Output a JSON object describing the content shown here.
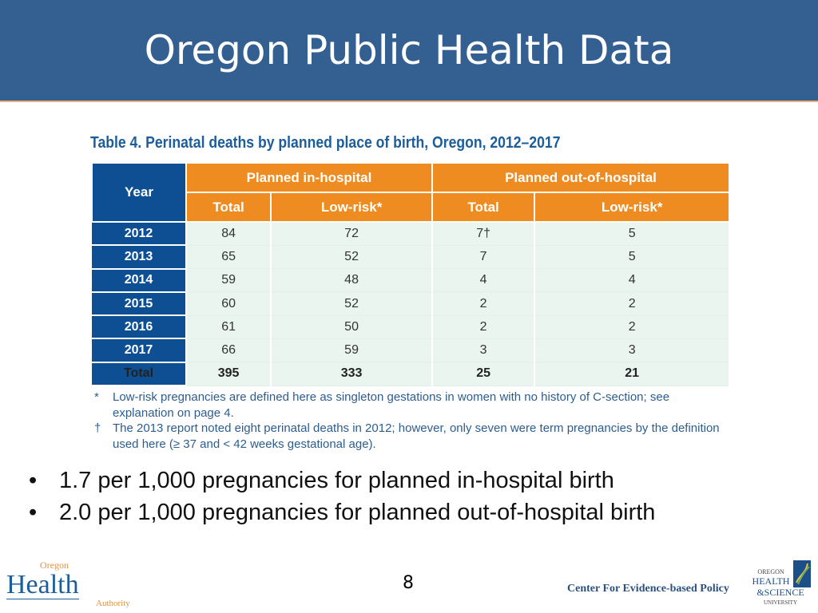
{
  "header": {
    "title": "Oregon Public Health Data"
  },
  "table": {
    "caption": "Table 4. Perinatal deaths by planned place of birth, Oregon, 2012–2017",
    "year_header": "Year",
    "groups": [
      "Planned in-hospital",
      "Planned out-of-hospital"
    ],
    "subheaders": [
      "Total",
      "Low-risk*",
      "Total",
      "Low-risk*"
    ],
    "rows": [
      {
        "year": "2012",
        "values": [
          "84",
          "72",
          "7†",
          "5"
        ]
      },
      {
        "year": "2013",
        "values": [
          "65",
          "52",
          "7",
          "5"
        ]
      },
      {
        "year": "2014",
        "values": [
          "59",
          "48",
          "4",
          "4"
        ]
      },
      {
        "year": "2015",
        "values": [
          "60",
          "52",
          "2",
          "2"
        ]
      },
      {
        "year": "2016",
        "values": [
          "61",
          "50",
          "2",
          "2"
        ]
      },
      {
        "year": "2017",
        "values": [
          "66",
          "59",
          "3",
          "3"
        ]
      },
      {
        "year": "Total",
        "values": [
          "395",
          "333",
          "25",
          "21"
        ]
      }
    ],
    "notes": [
      {
        "mark": "*",
        "text": "Low-risk pregnancies are defined here as singleton gestations in women with no history of C-section; see explanation on page 4."
      },
      {
        "mark": "†",
        "text": "The 2013 report noted eight perinatal deaths in 2012; however, only seven were term pregnancies by the definition used here (≥ 37 and < 42 weeks gestational age)."
      }
    ]
  },
  "bullets": [
    "1.7 per 1,000 pregnancies for planned in-hospital birth",
    "2.0 per 1,000 pregnancies for planned out-of-hospital birth"
  ],
  "footer": {
    "page_number": "8",
    "center": "Center For Evidence-based Policy",
    "oha_logo": {
      "top": "Oregon",
      "main": "Health",
      "bottom": "Authority"
    },
    "ohsu_logo": "OREGON HEALTH & SCIENCE UNIVERSITY"
  },
  "colors": {
    "title_bar": "#345f91",
    "table_blue": "#0d4f92",
    "table_orange": "#ee8c22",
    "cell_bg": "#eaf5f0"
  }
}
